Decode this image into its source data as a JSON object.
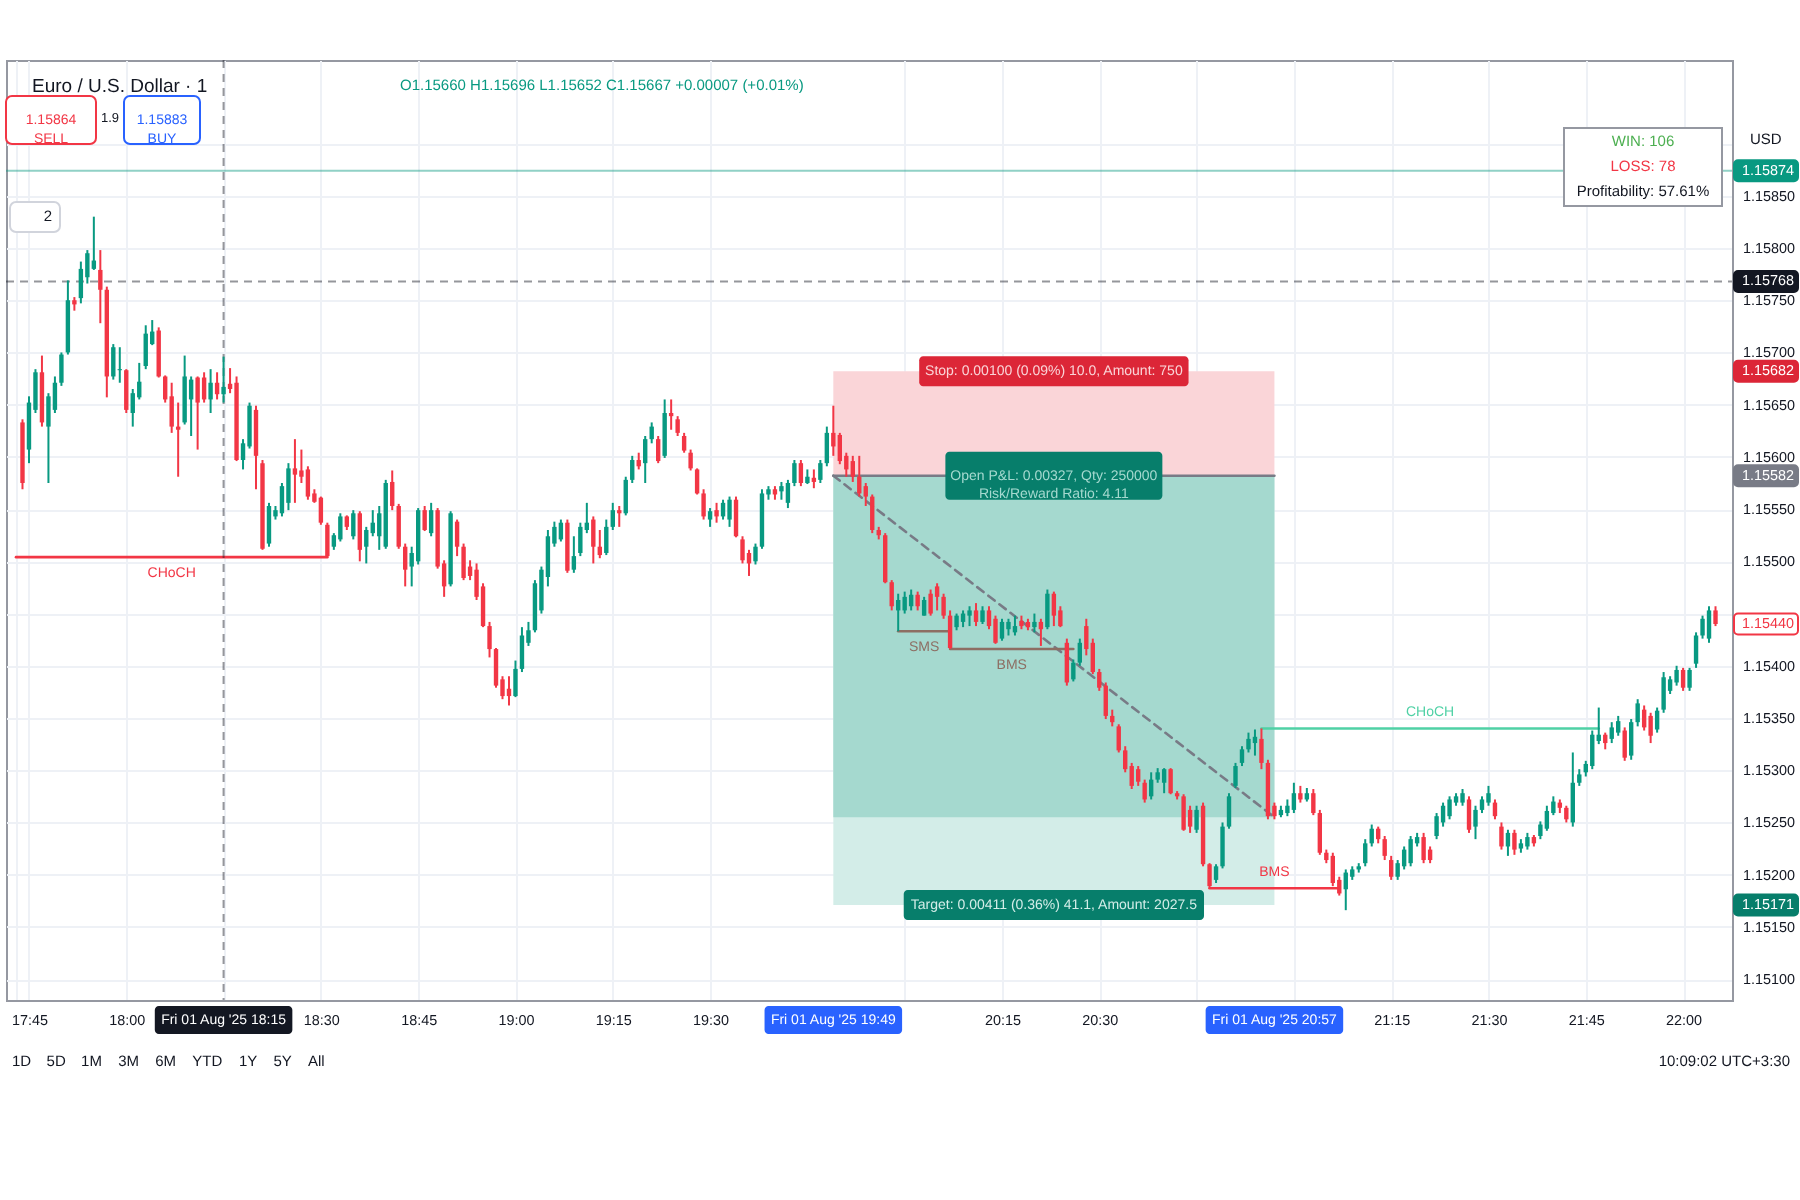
{
  "chart_data": {
    "type": "candlestick",
    "title": "Euro / U.S. Dollar · 1",
    "subtitle": "O1.15660 H1.15696 L1.15652 C1.15667 +0.00007 (+0.01%)",
    "ylabel": "USD",
    "xlim": [
      "2025-08-01T17:43",
      "2025-08-01T22:06"
    ],
    "ylim": [
      1.1508,
      1.1598
    ],
    "xticks": [
      {
        "value": "2025-08-01T17:43",
        "label": null
      },
      {
        "value": "2025-08-01T17:45",
        "label": "17:45"
      },
      {
        "value": "2025-08-01T18:00",
        "label": "18:00"
      },
      {
        "value": "2025-08-01T18:15",
        "label": null
      },
      {
        "value": "2025-08-01T18:30",
        "label": "18:30"
      },
      {
        "value": "2025-08-01T18:45",
        "label": "18:45"
      },
      {
        "value": "2025-08-01T19:00",
        "label": "19:00"
      },
      {
        "value": "2025-08-01T19:15",
        "label": "19:15"
      },
      {
        "value": "2025-08-01T19:30",
        "label": "19:30"
      },
      {
        "value": "2025-08-01T19:49",
        "label": "Fri 01 Aug '25 19:49"
      },
      {
        "value": "2025-08-01T20:00",
        "label": null
      },
      {
        "value": "2025-08-01T20:15",
        "label": "20:15"
      },
      {
        "value": "2025-08-01T20:30",
        "label": "20:30"
      },
      {
        "value": "2025-08-01T20:45",
        "label": null
      },
      {
        "value": "2025-08-01T20:57",
        "label": "Fri 01 Aug '25 20:57"
      },
      {
        "value": "2025-08-01T21:00",
        "label": null
      },
      {
        "value": "2025-08-01T21:15",
        "label": "21:15"
      },
      {
        "value": "2025-08-01T21:30",
        "label": "21:30"
      },
      {
        "value": "2025-08-01T21:45",
        "label": "21:45"
      },
      {
        "value": "2025-08-01T22:00",
        "label": "22:00"
      }
    ],
    "yticks": [
      {
        "value": 1.151,
        "label": "1.15100"
      },
      {
        "value": 1.1515,
        "label": "1.15150"
      },
      1.15171,
      {
        "value": 1.152,
        "label": "1.15200"
      },
      {
        "value": 1.1525,
        "label": "1.15250"
      },
      {
        "value": 1.153,
        "label": "1.15300"
      },
      {
        "value": 1.1535,
        "label": "1.15350"
      },
      {
        "value": 1.154,
        "label": "1.15400"
      },
      {
        "value": 1.1544,
        "label": "1.15440"
      },
      {
        "value": 1.1545,
        "label": null
      },
      {
        "value": 1.155,
        "label": "1.15500"
      },
      {
        "value": 1.1555,
        "label": "1.15550"
      },
      1.15582,
      {
        "value": 1.156,
        "label": "1.15600"
      },
      {
        "value": 1.1565,
        "label": "1.15650"
      },
      1.15682,
      {
        "value": 1.157,
        "label": "1.15700"
      },
      {
        "value": 1.1575,
        "label": "1.15750"
      },
      {
        "value": 1.158,
        "label": "1.15800"
      },
      {
        "value": 1.1585,
        "label": "1.15850"
      },
      {
        "value": 1.159,
        "label": null
      }
    ],
    "grid": true,
    "x": [
      "2025-08-01T17:44",
      "2025-08-01T17:45",
      "2025-08-01T17:46",
      "2025-08-01T17:47",
      "2025-08-01T17:48",
      "2025-08-01T17:49",
      "2025-08-01T17:50",
      "2025-08-01T17:51",
      "2025-08-01T17:52",
      "2025-08-01T17:53",
      "2025-08-01T17:54",
      "2025-08-01T17:55",
      "2025-08-01T17:56",
      "2025-08-01T17:57",
      "2025-08-01T17:58",
      "2025-08-01T17:59",
      "2025-08-01T18:00",
      "2025-08-01T18:01",
      "2025-08-01T18:02",
      "2025-08-01T18:03",
      "2025-08-01T18:04",
      "2025-08-01T18:05",
      "2025-08-01T18:06",
      "2025-08-01T18:07",
      "2025-08-01T18:08",
      "2025-08-01T18:09",
      "2025-08-01T18:10",
      "2025-08-01T18:11",
      "2025-08-01T18:12",
      "2025-08-01T18:13",
      "2025-08-01T18:14",
      "2025-08-01T18:15",
      "2025-08-01T18:16",
      "2025-08-01T18:17",
      "2025-08-01T18:18",
      "2025-08-01T18:19",
      "2025-08-01T18:20",
      "2025-08-01T18:21",
      "2025-08-01T18:22",
      "2025-08-01T18:23",
      "2025-08-01T18:24",
      "2025-08-01T18:25",
      "2025-08-01T18:26",
      "2025-08-01T18:27",
      "2025-08-01T18:28",
      "2025-08-01T18:29",
      "2025-08-01T18:30",
      "2025-08-01T18:31",
      "2025-08-01T18:32",
      "2025-08-01T18:33",
      "2025-08-01T18:34",
      "2025-08-01T18:35",
      "2025-08-01T18:36",
      "2025-08-01T18:37",
      "2025-08-01T18:38",
      "2025-08-01T18:39",
      "2025-08-01T18:40",
      "2025-08-01T18:41",
      "2025-08-01T18:42",
      "2025-08-01T18:43",
      "2025-08-01T18:44",
      "2025-08-01T18:45",
      "2025-08-01T18:46",
      "2025-08-01T18:47",
      "2025-08-01T18:48",
      "2025-08-01T18:49",
      "2025-08-01T18:50",
      "2025-08-01T18:51",
      "2025-08-01T18:52",
      "2025-08-01T18:53",
      "2025-08-01T18:54",
      "2025-08-01T18:55",
      "2025-08-01T18:56",
      "2025-08-01T18:57",
      "2025-08-01T18:58",
      "2025-08-01T18:59",
      "2025-08-01T19:00",
      "2025-08-01T19:01",
      "2025-08-01T19:02",
      "2025-08-01T19:03",
      "2025-08-01T19:04",
      "2025-08-01T19:05",
      "2025-08-01T19:06",
      "2025-08-01T19:07",
      "2025-08-01T19:08",
      "2025-08-01T19:09",
      "2025-08-01T19:10",
      "2025-08-01T19:11",
      "2025-08-01T19:12",
      "2025-08-01T19:13",
      "2025-08-01T19:14",
      "2025-08-01T19:15",
      "2025-08-01T19:16",
      "2025-08-01T19:17",
      "2025-08-01T19:18",
      "2025-08-01T19:19",
      "2025-08-01T19:20",
      "2025-08-01T19:21",
      "2025-08-01T19:22",
      "2025-08-01T19:23",
      "2025-08-01T19:24",
      "2025-08-01T19:25",
      "2025-08-01T19:26",
      "2025-08-01T19:27",
      "2025-08-01T19:28",
      "2025-08-01T19:29",
      "2025-08-01T19:30",
      "2025-08-01T19:31",
      "2025-08-01T19:32",
      "2025-08-01T19:33",
      "2025-08-01T19:34",
      "2025-08-01T19:35",
      "2025-08-01T19:36",
      "2025-08-01T19:37",
      "2025-08-01T19:38",
      "2025-08-01T19:39",
      "2025-08-01T19:40",
      "2025-08-01T19:41",
      "2025-08-01T19:42",
      "2025-08-01T19:43",
      "2025-08-01T19:44",
      "2025-08-01T19:45",
      "2025-08-01T19:46",
      "2025-08-01T19:47",
      "2025-08-01T19:48",
      "2025-08-01T19:49",
      "2025-08-01T19:50",
      "2025-08-01T19:51",
      "2025-08-01T19:52",
      "2025-08-01T19:53",
      "2025-08-01T19:54",
      "2025-08-01T19:55",
      "2025-08-01T19:56",
      "2025-08-01T19:57",
      "2025-08-01T19:58",
      "2025-08-01T19:59",
      "2025-08-01T20:00",
      "2025-08-01T20:01",
      "2025-08-01T20:02",
      "2025-08-01T20:03",
      "2025-08-01T20:04",
      "2025-08-01T20:05",
      "2025-08-01T20:06",
      "2025-08-01T20:07",
      "2025-08-01T20:08",
      "2025-08-01T20:09",
      "2025-08-01T20:10",
      "2025-08-01T20:11",
      "2025-08-01T20:12",
      "2025-08-01T20:13",
      "2025-08-01T20:14",
      "2025-08-01T20:15",
      "2025-08-01T20:16",
      "2025-08-01T20:17",
      "2025-08-01T20:18",
      "2025-08-01T20:19",
      "2025-08-01T20:20",
      "2025-08-01T20:21",
      "2025-08-01T20:22",
      "2025-08-01T20:23",
      "2025-08-01T20:24",
      "2025-08-01T20:25",
      "2025-08-01T20:26",
      "2025-08-01T20:27",
      "2025-08-01T20:28",
      "2025-08-01T20:29",
      "2025-08-01T20:30",
      "2025-08-01T20:31",
      "2025-08-01T20:32",
      "2025-08-01T20:33",
      "2025-08-01T20:34",
      "2025-08-01T20:35",
      "2025-08-01T20:36",
      "2025-08-01T20:37",
      "2025-08-01T20:38",
      "2025-08-01T20:39",
      "2025-08-01T20:40",
      "2025-08-01T20:41",
      "2025-08-01T20:42",
      "2025-08-01T20:43",
      "2025-08-01T20:44",
      "2025-08-01T20:45",
      "2025-08-01T20:46",
      "2025-08-01T20:47",
      "2025-08-01T20:48",
      "2025-08-01T20:49",
      "2025-08-01T20:50",
      "2025-08-01T20:51",
      "2025-08-01T20:52",
      "2025-08-01T20:53",
      "2025-08-01T20:54",
      "2025-08-01T20:55",
      "2025-08-01T20:56",
      "2025-08-01T20:57",
      "2025-08-01T20:58",
      "2025-08-01T20:59",
      "2025-08-01T21:00",
      "2025-08-01T21:01",
      "2025-08-01T21:02",
      "2025-08-01T21:03",
      "2025-08-01T21:04",
      "2025-08-01T21:05",
      "2025-08-01T21:06",
      "2025-08-01T21:07",
      "2025-08-01T21:08",
      "2025-08-01T21:09",
      "2025-08-01T21:10",
      "2025-08-01T21:11",
      "2025-08-01T21:12",
      "2025-08-01T21:13",
      "2025-08-01T21:14",
      "2025-08-01T21:15",
      "2025-08-01T21:16",
      "2025-08-01T21:17",
      "2025-08-01T21:18",
      "2025-08-01T21:19",
      "2025-08-01T21:20",
      "2025-08-01T21:21",
      "2025-08-01T21:22",
      "2025-08-01T21:23",
      "2025-08-01T21:24",
      "2025-08-01T21:25",
      "2025-08-01T21:26",
      "2025-08-01T21:27",
      "2025-08-01T21:28",
      "2025-08-01T21:29",
      "2025-08-01T21:30",
      "2025-08-01T21:31",
      "2025-08-01T21:32",
      "2025-08-01T21:33",
      "2025-08-01T21:34",
      "2025-08-01T21:35",
      "2025-08-01T21:36",
      "2025-08-01T21:37",
      "2025-08-01T21:38",
      "2025-08-01T21:39",
      "2025-08-01T21:40",
      "2025-08-01T21:41",
      "2025-08-01T21:42",
      "2025-08-01T21:43",
      "2025-08-01T21:44",
      "2025-08-01T21:45",
      "2025-08-01T21:46",
      "2025-08-01T21:47",
      "2025-08-01T21:48",
      "2025-08-01T21:49",
      "2025-08-01T21:50",
      "2025-08-01T21:51",
      "2025-08-01T21:52",
      "2025-08-01T21:53",
      "2025-08-01T21:54",
      "2025-08-01T21:55",
      "2025-08-01T21:56",
      "2025-08-01T21:57",
      "2025-08-01T21:58",
      "2025-08-01T21:59",
      "2025-08-01T22:00",
      "2025-08-01T22:01",
      "2025-08-01T22:02",
      "2025-08-01T22:03",
      "2025-08-01T22:04",
      "2025-08-01T22:05"
    ],
    "ohlc": [
      [
        1.15633,
        1.15636,
        1.15569,
        1.15575
      ],
      [
        1.15607,
        1.15658,
        1.15594,
        1.15652
      ],
      [
        1.15645,
        1.15684,
        1.15642,
        1.15681
      ],
      [
        1.15681,
        1.15697,
        1.15629,
        1.15633
      ],
      [
        1.15629,
        1.15661,
        1.15575,
        1.15658
      ],
      [
        1.15645,
        1.15677,
        1.15642,
        1.15671
      ],
      [
        1.15671,
        1.157,
        1.15668,
        1.15698
      ],
      [
        1.157,
        1.15769,
        1.15698,
        1.1575
      ],
      [
        1.1575,
        1.15753,
        1.1574,
        1.15746
      ],
      [
        1.15752,
        1.15787,
        1.15747,
        1.1578
      ],
      [
        1.15772,
        1.15798,
        1.15766,
        1.15795
      ],
      [
        1.1578,
        1.1583,
        1.15779,
        1.15788
      ],
      [
        1.15779,
        1.15798,
        1.15728,
        1.1576
      ],
      [
        1.1576,
        1.15763,
        1.15657,
        1.15677
      ],
      [
        1.15677,
        1.15708,
        1.15674,
        1.15705
      ],
      [
        1.15683,
        1.15705,
        1.15671,
        1.15684
      ],
      [
        1.15683,
        1.15684,
        1.15642,
        1.15645
      ],
      [
        1.15642,
        1.15665,
        1.15629,
        1.15661
      ],
      [
        1.15657,
        1.1569,
        1.15655,
        1.15672
      ],
      [
        1.15687,
        1.15726,
        1.15684,
        1.15718
      ],
      [
        1.15708,
        1.15731,
        1.15707,
        1.1572
      ],
      [
        1.15721,
        1.15724,
        1.15676,
        1.15677
      ],
      [
        1.15677,
        1.15678,
        1.15652,
        1.15655
      ],
      [
        1.15658,
        1.15671,
        1.15623,
        1.15629
      ],
      [
        1.15629,
        1.15652,
        1.15581,
        1.15626
      ],
      [
        1.15633,
        1.15697,
        1.15631,
        1.15677
      ],
      [
        1.15655,
        1.15677,
        1.1562,
        1.15674
      ],
      [
        1.15676,
        1.15677,
        1.15607,
        1.15652
      ],
      [
        1.15676,
        1.15681,
        1.15652,
        1.15655
      ],
      [
        1.15655,
        1.15684,
        1.15642,
        1.15671
      ],
      [
        1.15671,
        1.15681,
        1.15655,
        1.1566
      ],
      [
        1.1566,
        1.15696,
        1.15652,
        1.15667
      ],
      [
        1.1567,
        1.15685,
        1.15661,
        1.15665
      ],
      [
        1.15671,
        1.15677,
        1.15596,
        1.15597
      ],
      [
        1.15597,
        1.15617,
        1.15588,
        1.15613
      ],
      [
        1.1561,
        1.15652,
        1.15608,
        1.15649
      ],
      [
        1.15645,
        1.15649,
        1.15569,
        1.15601
      ],
      [
        1.15594,
        1.15597,
        1.15511,
        1.15512
      ],
      [
        1.15517,
        1.15556,
        1.15514,
        1.15553
      ],
      [
        1.15543,
        1.15553,
        1.1554,
        1.15549
      ],
      [
        1.15546,
        1.15575,
        1.15543,
        1.15572
      ],
      [
        1.15556,
        1.15594,
        1.15549,
        1.15589
      ],
      [
        1.15589,
        1.15617,
        1.15556,
        1.15583
      ],
      [
        1.15587,
        1.15607,
        1.15575,
        1.15581
      ],
      [
        1.15588,
        1.15591,
        1.15559,
        1.15562
      ],
      [
        1.15565,
        1.15569,
        1.15556,
        1.15557
      ],
      [
        1.15561,
        1.15562,
        1.15535,
        1.15537
      ],
      [
        1.15535,
        1.15537,
        1.15504,
        1.15505
      ],
      [
        1.15514,
        1.15527,
        1.15511,
        1.15525
      ],
      [
        1.15521,
        1.15546,
        1.15519,
        1.15543
      ],
      [
        1.15543,
        1.15544,
        1.1553,
        1.15533
      ],
      [
        1.15524,
        1.15549,
        1.15521,
        1.15546
      ],
      [
        1.15546,
        1.15548,
        1.155,
        1.15511
      ],
      [
        1.15514,
        1.15533,
        1.15498,
        1.1553
      ],
      [
        1.15527,
        1.15549,
        1.15524,
        1.15537
      ],
      [
        1.15524,
        1.15553,
        1.15511,
        1.15546
      ],
      [
        1.15514,
        1.15578,
        1.15512,
        1.15575
      ],
      [
        1.15576,
        1.15587,
        1.15549,
        1.15553
      ],
      [
        1.15553,
        1.15555,
        1.15512,
        1.15514
      ],
      [
        1.15514,
        1.15517,
        1.15476,
        1.15492
      ],
      [
        1.15495,
        1.15514,
        1.15476,
        1.15508
      ],
      [
        1.155,
        1.15551,
        1.15497,
        1.15549
      ],
      [
        1.15549,
        1.15553,
        1.15529,
        1.1553
      ],
      [
        1.15527,
        1.15556,
        1.15524,
        1.15549
      ],
      [
        1.15549,
        1.15551,
        1.15493,
        1.15495
      ],
      [
        1.15498,
        1.15501,
        1.15466,
        1.15476
      ],
      [
        1.15478,
        1.15548,
        1.15476,
        1.15546
      ],
      [
        1.15538,
        1.1554,
        1.15505,
        1.15514
      ],
      [
        1.15514,
        1.15517,
        1.15482,
        1.15484
      ],
      [
        1.15495,
        1.15501,
        1.15482,
        1.15486
      ],
      [
        1.15492,
        1.15498,
        1.15463,
        1.15466
      ],
      [
        1.15476,
        1.15479,
        1.15437,
        1.15438
      ],
      [
        1.15438,
        1.15442,
        1.15408,
        1.15416
      ],
      [
        1.15416,
        1.15417,
        1.15379,
        1.15381
      ],
      [
        1.15387,
        1.1539,
        1.15368,
        1.15371
      ],
      [
        1.15378,
        1.1539,
        1.15362,
        1.15371
      ],
      [
        1.15371,
        1.15405,
        1.1537,
        1.15397
      ],
      [
        1.15397,
        1.15437,
        1.15394,
        1.15429
      ],
      [
        1.15422,
        1.15442,
        1.15419,
        1.15434
      ],
      [
        1.15434,
        1.15482,
        1.15432,
        1.15479
      ],
      [
        1.15453,
        1.15495,
        1.1545,
        1.15492
      ],
      [
        1.15485,
        1.1553,
        1.15476,
        1.15524
      ],
      [
        1.15517,
        1.15538,
        1.15514,
        1.15533
      ],
      [
        1.15521,
        1.1554,
        1.15519,
        1.15537
      ],
      [
        1.15537,
        1.1554,
        1.15489,
        1.15491
      ],
      [
        1.15492,
        1.15524,
        1.15489,
        1.15505
      ],
      [
        1.15508,
        1.15537,
        1.15505,
        1.15533
      ],
      [
        1.1553,
        1.15556,
        1.15527,
        1.15537
      ],
      [
        1.1554,
        1.15543,
        1.15498,
        1.15514
      ],
      [
        1.15514,
        1.1553,
        1.15503,
        1.15506
      ],
      [
        1.15508,
        1.1554,
        1.15506,
        1.15533
      ],
      [
        1.15533,
        1.15556,
        1.1553,
        1.15549
      ],
      [
        1.15549,
        1.15553,
        1.15533,
        1.15546
      ],
      [
        1.15546,
        1.15581,
        1.15544,
        1.15578
      ],
      [
        1.15578,
        1.15601,
        1.15575,
        1.15597
      ],
      [
        1.15597,
        1.15604,
        1.15588,
        1.15591
      ],
      [
        1.15594,
        1.1562,
        1.15575,
        1.15617
      ],
      [
        1.15617,
        1.15633,
        1.15613,
        1.15629
      ],
      [
        1.15617,
        1.1562,
        1.15594,
        1.15596
      ],
      [
        1.15601,
        1.15655,
        1.15599,
        1.15642
      ],
      [
        1.15642,
        1.15655,
        1.15626,
        1.15639
      ],
      [
        1.15636,
        1.15639,
        1.1562,
        1.15623
      ],
      [
        1.1562,
        1.15623,
        1.15604,
        1.15606
      ],
      [
        1.15604,
        1.15607,
        1.15587,
        1.15589
      ],
      [
        1.15588,
        1.15589,
        1.15564,
        1.15565
      ],
      [
        1.15565,
        1.15569,
        1.1554,
        1.15543
      ],
      [
        1.1554,
        1.15551,
        1.15533,
        1.15548
      ],
      [
        1.15549,
        1.15556,
        1.15537,
        1.15543
      ],
      [
        1.15543,
        1.15559,
        1.1554,
        1.15556
      ],
      [
        1.1554,
        1.15562,
        1.15533,
        1.15559
      ],
      [
        1.15559,
        1.15562,
        1.15523,
        1.15524
      ],
      [
        1.15521,
        1.15524,
        1.15498,
        1.15501
      ],
      [
        1.15508,
        1.15511,
        1.15486,
        1.15498
      ],
      [
        1.155,
        1.15517,
        1.15497,
        1.15514
      ],
      [
        1.15514,
        1.15569,
        1.15512,
        1.15565
      ],
      [
        1.15564,
        1.15572,
        1.15559,
        1.15569
      ],
      [
        1.15569,
        1.15572,
        1.15559,
        1.15564
      ],
      [
        1.15567,
        1.15576,
        1.15559,
        1.15572
      ],
      [
        1.15556,
        1.15578,
        1.15551,
        1.15575
      ],
      [
        1.15575,
        1.15597,
        1.15572,
        1.15594
      ],
      [
        1.15594,
        1.15597,
        1.15572,
        1.15575
      ],
      [
        1.15575,
        1.15588,
        1.15574,
        1.15581
      ],
      [
        1.1558,
        1.15588,
        1.1557,
        1.15576
      ],
      [
        1.15578,
        1.15597,
        1.15575,
        1.15594
      ],
      [
        1.15594,
        1.15629,
        1.15591,
        1.15623
      ],
      [
        1.15623,
        1.15649,
        1.15601,
        1.1561
      ],
      [
        1.15621,
        1.15623,
        1.15593,
        1.15596
      ],
      [
        1.15601,
        1.15604,
        1.15581,
        1.15588
      ],
      [
        1.15596,
        1.15601,
        1.15576,
        1.15581
      ],
      [
        1.15581,
        1.15601,
        1.15562,
        1.15565
      ],
      [
        1.15572,
        1.15575,
        1.15553,
        1.15562
      ],
      [
        1.15562,
        1.15564,
        1.15527,
        1.1553
      ],
      [
        1.1553,
        1.15533,
        1.15521,
        1.15525
      ],
      [
        1.15525,
        1.15527,
        1.15479,
        1.1548
      ],
      [
        1.1548,
        1.15482,
        1.15453,
        1.15457
      ],
      [
        1.15453,
        1.15469,
        1.15433,
        1.15463
      ],
      [
        1.15453,
        1.15471,
        1.1545,
        1.15466
      ],
      [
        1.15457,
        1.15473,
        1.15453,
        1.15468
      ],
      [
        1.15468,
        1.15471,
        1.15453,
        1.15457
      ],
      [
        1.15448,
        1.15466,
        1.15448,
        1.15463
      ],
      [
        1.15469,
        1.15473,
        1.15448,
        1.1545
      ],
      [
        1.15476,
        1.15479,
        1.15453,
        1.15466
      ],
      [
        1.15466,
        1.15469,
        1.15445,
        1.15448
      ],
      [
        1.15448,
        1.15453,
        1.15416,
        1.15417
      ],
      [
        1.15437,
        1.1545,
        1.15434,
        1.15448
      ],
      [
        1.15442,
        1.15453,
        1.15437,
        1.1545
      ],
      [
        1.15448,
        1.15457,
        1.15438,
        1.15453
      ],
      [
        1.15453,
        1.1546,
        1.15438,
        1.15442
      ],
      [
        1.15442,
        1.15457,
        1.1544,
        1.15453
      ],
      [
        1.15453,
        1.15457,
        1.15435,
        1.15438
      ],
      [
        1.15445,
        1.15448,
        1.15421,
        1.15422
      ],
      [
        1.15426,
        1.15445,
        1.15424,
        1.15442
      ],
      [
        1.15435,
        1.15445,
        1.15429,
        1.15442
      ],
      [
        1.15432,
        1.15448,
        1.15429,
        1.15438
      ],
      [
        1.15443,
        1.15448,
        1.15435,
        1.15438
      ],
      [
        1.15442,
        1.15445,
        1.15434,
        1.15437
      ],
      [
        1.15437,
        1.1545,
        1.15432,
        1.15442
      ],
      [
        1.15442,
        1.15445,
        1.15419,
        1.15435
      ],
      [
        1.15437,
        1.15473,
        1.15435,
        1.15469
      ],
      [
        1.15469,
        1.15471,
        1.15438,
        1.15448
      ],
      [
        1.15453,
        1.15457,
        1.15437,
        1.15438
      ],
      [
        1.15422,
        1.15426,
        1.15381,
        1.15384
      ],
      [
        1.15387,
        1.15406,
        1.15385,
        1.15403
      ],
      [
        1.15403,
        1.15426,
        1.154,
        1.15422
      ],
      [
        1.15438,
        1.15445,
        1.1541,
        1.15416
      ],
      [
        1.15422,
        1.15426,
        1.15392,
        1.15394
      ],
      [
        1.15394,
        1.15397,
        1.15376,
        1.15379
      ],
      [
        1.15381,
        1.15384,
        1.15349,
        1.15352
      ],
      [
        1.15352,
        1.15358,
        1.15342,
        1.15346
      ],
      [
        1.15342,
        1.15344,
        1.15317,
        1.15319
      ],
      [
        1.15319,
        1.15323,
        1.15298,
        1.15301
      ],
      [
        1.15304,
        1.15307,
        1.15282,
        1.15285
      ],
      [
        1.15301,
        1.15304,
        1.15285,
        1.15289
      ],
      [
        1.15288,
        1.15291,
        1.15269,
        1.15272
      ],
      [
        1.15275,
        1.15298,
        1.15272,
        1.15291
      ],
      [
        1.15291,
        1.15302,
        1.15288,
        1.15298
      ],
      [
        1.15288,
        1.15302,
        1.15278,
        1.15301
      ],
      [
        1.15301,
        1.15302,
        1.15277,
        1.15278
      ],
      [
        1.15278,
        1.1528,
        1.15272,
        1.15275
      ],
      [
        1.15275,
        1.15277,
        1.15242,
        1.15243
      ],
      [
        1.15262,
        1.15266,
        1.1524,
        1.15246
      ],
      [
        1.15243,
        1.15266,
        1.1524,
        1.15262
      ],
      [
        1.15266,
        1.15269,
        1.15208,
        1.1521
      ],
      [
        1.1521,
        1.15211,
        1.15187,
        1.15189
      ],
      [
        1.15195,
        1.1521,
        1.15192,
        1.15208
      ],
      [
        1.15208,
        1.1525,
        1.15206,
        1.15246
      ],
      [
        1.15246,
        1.15278,
        1.15244,
        1.15275
      ],
      [
        1.15285,
        1.15307,
        1.15283,
        1.15304
      ],
      [
        1.15307,
        1.15323,
        1.15304,
        1.1532
      ],
      [
        1.1532,
        1.15336,
        1.15317,
        1.1533
      ],
      [
        1.15326,
        1.15339,
        1.15314,
        1.15332
      ],
      [
        1.1533,
        1.1534,
        1.15301,
        1.15307
      ],
      [
        1.15307,
        1.1531,
        1.15253,
        1.15256
      ],
      [
        1.15266,
        1.15269,
        1.15253,
        1.15256
      ],
      [
        1.15257,
        1.15266,
        1.15255,
        1.15262
      ],
      [
        1.15259,
        1.15272,
        1.15256,
        1.15266
      ],
      [
        1.15262,
        1.15288,
        1.15259,
        1.15278
      ],
      [
        1.15278,
        1.15285,
        1.15269,
        1.15272
      ],
      [
        1.15272,
        1.15283,
        1.1527,
        1.15278
      ],
      [
        1.15278,
        1.15282,
        1.15257,
        1.15259
      ],
      [
        1.15259,
        1.15262,
        1.15219,
        1.15221
      ],
      [
        1.15221,
        1.15224,
        1.15211,
        1.15214
      ],
      [
        1.15218,
        1.15221,
        1.15189,
        1.15192
      ],
      [
        1.15195,
        1.15198,
        1.1518,
        1.15182
      ],
      [
        1.15186,
        1.15205,
        1.15166,
        1.15202
      ],
      [
        1.15198,
        1.15208,
        1.15195,
        1.15205
      ],
      [
        1.15205,
        1.15211,
        1.15202,
        1.15208
      ],
      [
        1.15211,
        1.15234,
        1.15208,
        1.1523
      ],
      [
        1.1523,
        1.15248,
        1.15227,
        1.15244
      ],
      [
        1.15244,
        1.15246,
        1.1523,
        1.15234
      ],
      [
        1.15234,
        1.15237,
        1.15214,
        1.15218
      ],
      [
        1.15214,
        1.15218,
        1.15195,
        1.15198
      ],
      [
        1.15198,
        1.15214,
        1.15195,
        1.15211
      ],
      [
        1.15208,
        1.15227,
        1.15205,
        1.15224
      ],
      [
        1.15211,
        1.15237,
        1.15208,
        1.15234
      ],
      [
        1.1523,
        1.1524,
        1.15227,
        1.15236
      ],
      [
        1.15236,
        1.1524,
        1.15211,
        1.15214
      ],
      [
        1.15224,
        1.15227,
        1.15211,
        1.15214
      ],
      [
        1.15237,
        1.15259,
        1.15234,
        1.15256
      ],
      [
        1.1525,
        1.15269,
        1.15246,
        1.15266
      ],
      [
        1.15256,
        1.15275,
        1.15253,
        1.15272
      ],
      [
        1.15269,
        1.15278,
        1.15266,
        1.15275
      ],
      [
        1.15269,
        1.15282,
        1.15266,
        1.15278
      ],
      [
        1.15272,
        1.15275,
        1.1524,
        1.15243
      ],
      [
        1.15246,
        1.15266,
        1.15234,
        1.15262
      ],
      [
        1.15262,
        1.15275,
        1.15259,
        1.15272
      ],
      [
        1.15269,
        1.15285,
        1.15266,
        1.15278
      ],
      [
        1.15269,
        1.15272,
        1.15253,
        1.15256
      ],
      [
        1.15246,
        1.1525,
        1.15224,
        1.15227
      ],
      [
        1.15227,
        1.15243,
        1.15218,
        1.1524
      ],
      [
        1.1524,
        1.15243,
        1.15219,
        1.15224
      ],
      [
        1.15225,
        1.15234,
        1.15221,
        1.1523
      ],
      [
        1.15227,
        1.1524,
        1.15224,
        1.15236
      ],
      [
        1.15236,
        1.15238,
        1.15227,
        1.1523
      ],
      [
        1.15237,
        1.15251,
        1.15234,
        1.15248
      ],
      [
        1.15244,
        1.15266,
        1.15242,
        1.15261
      ],
      [
        1.15259,
        1.15275,
        1.15257,
        1.1527
      ],
      [
        1.15269,
        1.15272,
        1.15259,
        1.15264
      ],
      [
        1.15264,
        1.15266,
        1.1525,
        1.15253
      ],
      [
        1.1525,
        1.15317,
        1.15246,
        1.15288
      ],
      [
        1.15288,
        1.15301,
        1.15285,
        1.15296
      ],
      [
        1.15298,
        1.15309,
        1.15294,
        1.15306
      ],
      [
        1.15304,
        1.15338,
        1.15301,
        1.15334
      ],
      [
        1.15328,
        1.1536,
        1.15325,
        1.15334
      ],
      [
        1.15334,
        1.15336,
        1.1532,
        1.15326
      ],
      [
        1.1533,
        1.15346,
        1.15326,
        1.15341
      ],
      [
        1.15336,
        1.15352,
        1.15333,
        1.15347
      ],
      [
        1.15338,
        1.15341,
        1.15309,
        1.15312
      ],
      [
        1.15314,
        1.15349,
        1.1531,
        1.15346
      ],
      [
        1.15346,
        1.15368,
        1.15342,
        1.15364
      ],
      [
        1.15358,
        1.15362,
        1.15338,
        1.15341
      ],
      [
        1.15352,
        1.15355,
        1.15326,
        1.15333
      ],
      [
        1.15339,
        1.1536,
        1.15336,
        1.15357
      ],
      [
        1.15358,
        1.15394,
        1.15355,
        1.15389
      ],
      [
        1.15376,
        1.1539,
        1.15373,
        1.15387
      ],
      [
        1.15384,
        1.154,
        1.15381,
        1.15396
      ],
      [
        1.15396,
        1.15398,
        1.15376,
        1.15379
      ],
      [
        1.15379,
        1.15398,
        1.15376,
        1.15396
      ],
      [
        1.15402,
        1.15432,
        1.15398,
        1.15429
      ],
      [
        1.15429,
        1.15448,
        1.15426,
        1.15445
      ],
      [
        1.15426,
        1.15457,
        1.15422,
        1.15453
      ],
      [
        1.15453,
        1.15457,
        1.15438,
        1.1544
      ]
    ],
    "series": [
      {
        "name": "Open P&L: 0.00327, Qty: 250000\nRisk/Reward Ratio: 4.11",
        "type": "line",
        "color": "#a5d9cf",
        "x": [
          "2025-08-01T19:49",
          "2025-08-01T20:57"
        ],
        "values": [
          null,
          null
        ],
        "upper": [
          1.15582,
          1.15582
        ],
        "lower": [
          1.15255,
          1.15255
        ]
      },
      {
        "name": "Target: 0.00411 (0.36%) 41.1, Amount: 2027.5",
        "type": "line",
        "color": "#d3ede8",
        "x": [
          "2025-08-01T19:49",
          "2025-08-01T20:57"
        ],
        "values": [
          null,
          null
        ],
        "upper": [
          1.15582,
          1.15582
        ],
        "lower": [
          1.15171,
          1.15171
        ]
      },
      {
        "name": "Stop: 0.00100 (0.09%) 10.0, Amount: 750",
        "type": "line",
        "color": "#fad5d8",
        "x": [
          "2025-08-01T19:49",
          "2025-08-01T20:57"
        ],
        "values": [
          null,
          null
        ],
        "upper": [
          1.15682,
          1.15682
        ],
        "lower": [
          1.15582,
          1.15582
        ]
      },
      {
        "type": "line",
        "color": "#787b86",
        "x": [
          "2025-08-01T19:49",
          "2025-08-01T20:57"
        ],
        "values": [
          1.15582,
          1.15582
        ]
      },
      {
        "type": "line",
        "color": "#787b86",
        "line_style": "dashed",
        "x": [
          "2025-08-01T19:49",
          "2025-08-01T20:57"
        ],
        "values": [
          1.15582,
          1.15255
        ]
      },
      {
        "name": "CHoCH",
        "type": "line",
        "color": "#f23645",
        "x": [
          "2025-08-01T17:43",
          "2025-08-01T18:31"
        ],
        "values": [
          1.15504,
          1.15504
        ]
      },
      {
        "name": "SMS",
        "type": "line",
        "color": "#8d6e63",
        "x": [
          "2025-08-01T19:59",
          "2025-08-01T20:07"
        ],
        "values": [
          1.15433,
          1.15433
        ]
      },
      {
        "name": "BMS",
        "type": "line",
        "color": "#8d6e63",
        "x": [
          "2025-08-01T20:07",
          "2025-08-01T20:26"
        ],
        "values": [
          1.15416,
          1.15416
        ]
      },
      {
        "name": "BMS",
        "type": "line",
        "color": "#f23645",
        "x": [
          "2025-08-01T20:47",
          "2025-08-01T21:07"
        ],
        "values": [
          1.15187,
          1.15187
        ]
      },
      {
        "name": "CHoCH",
        "type": "line",
        "color": "#4fd1a5",
        "x": [
          "2025-08-01T20:55",
          "2025-08-01T21:47"
        ],
        "values": [
          1.1534,
          1.1534
        ]
      }
    ],
    "ref_lines": [
      {
        "axis": "y",
        "value": 1.15874,
        "label": "1.15874",
        "color": "#089981"
      },
      {
        "axis": "y",
        "value": 1.15768,
        "label": "1.15768",
        "color": "#131722",
        "line_style": "dashed"
      },
      {
        "axis": "x",
        "value": "2025-08-01T18:15",
        "label": "Fri 01 Aug '25 18:15",
        "color": "#131722",
        "line_style": "dashed"
      }
    ],
    "annotations": [
      "1.15864\nSELL",
      "1.9",
      "1.15883\nBUY",
      "WIN: 106\nLOSS: 78\nProfitability: 57.61%",
      "2",
      "1D 5D 1M 3M 6M YTD 1Y 5Y All",
      "10:09:02 UTC+3:30"
    ]
  }
}
